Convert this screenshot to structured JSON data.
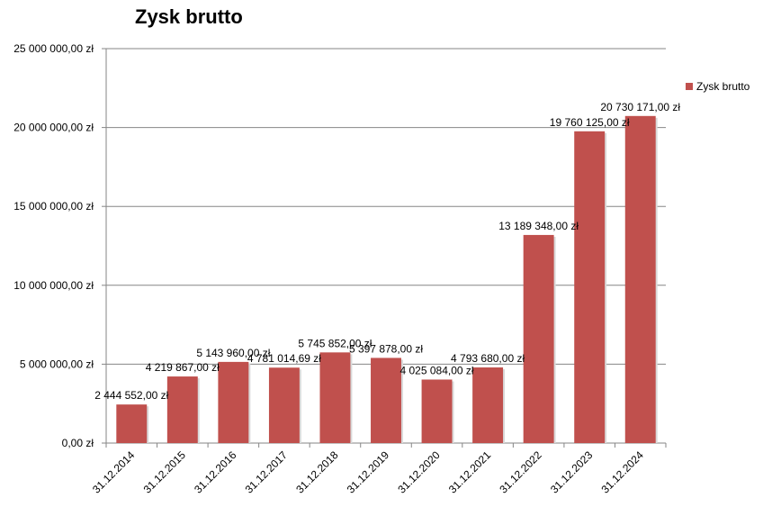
{
  "chart_data": {
    "type": "bar",
    "title": "Zysk brutto",
    "xlabel": "",
    "ylabel": "",
    "categories": [
      "31.12.2014",
      "31.12.2015",
      "31.12.2016",
      "31.12.2017",
      "31.12.2018",
      "31.12.2019",
      "31.12.2020",
      "31.12.2021",
      "31.12.2022",
      "31.12.2023",
      "31.12.2024"
    ],
    "series": [
      {
        "name": "Zysk brutto",
        "values": [
          2444552.0,
          4219867.0,
          5143960.0,
          4781014.69,
          5745852.0,
          5397878.0,
          4025084.0,
          4793680.0,
          13189348.0,
          19760125.0,
          20730171.0
        ],
        "value_labels": [
          "2 444 552,00  zł",
          "4 219 867,00  zł",
          "5 143 960,00  zł",
          "4 781 014,69  zł",
          "5 745 852,00  zł",
          "5 397 878,00  zł",
          "4 025 084,00  zł",
          "4 793 680,00  zł",
          "13 189 348,00  zł",
          "19 760 125,00  zł",
          "20 730 171,00  zł"
        ]
      }
    ],
    "ylim": [
      0,
      25000000
    ],
    "yticks": [
      0,
      5000000,
      10000000,
      15000000,
      20000000,
      25000000
    ],
    "ytick_labels": [
      "0,00  zł",
      "5 000 000,00  zł",
      "10 000 000,00  zł",
      "15 000 000,00  zł",
      "20 000 000,00  zł",
      "25 000 000,00  zł"
    ],
    "grid": true,
    "legend_position": "right",
    "colors": {
      "bar": "#C0504D",
      "grid": "#868686",
      "axis": "#868686",
      "text": "#000000"
    }
  }
}
